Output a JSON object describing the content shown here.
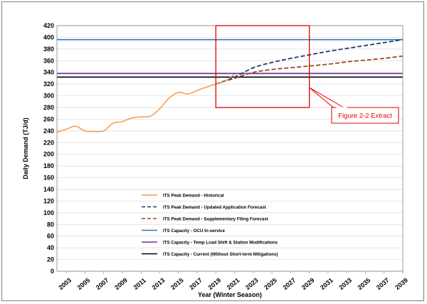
{
  "chart_data": {
    "type": "line",
    "xlabel": "Year (Winter Season)",
    "ylabel": "Daily Demand (TJ/d)",
    "xlim": [
      2002,
      2039
    ],
    "ylim": [
      0,
      420
    ],
    "y_ticks": [
      0,
      20,
      40,
      60,
      80,
      100,
      120,
      140,
      160,
      180,
      200,
      220,
      240,
      260,
      280,
      300,
      320,
      340,
      360,
      380,
      400,
      420
    ],
    "x_ticks": [
      2003,
      2005,
      2007,
      2009,
      2011,
      2013,
      2015,
      2017,
      2019,
      2021,
      2023,
      2025,
      2027,
      2029,
      2031,
      2033,
      2035,
      2037,
      2039
    ],
    "grid": "horizontal",
    "legend_position": "bottom-left inside",
    "series": [
      {
        "name": "ITS Peak Demand - Historical",
        "style": "solid",
        "color": "#f39c4d",
        "x": [
          2002,
          2003,
          2004,
          2005,
          2006,
          2007,
          2008,
          2009,
          2010,
          2011,
          2012,
          2013,
          2014,
          2015,
          2016,
          2017,
          2018,
          2019,
          2020,
          2021
        ],
        "y": [
          238,
          243,
          248,
          240,
          239,
          240,
          253,
          256,
          262,
          264,
          265,
          278,
          296,
          306,
          303,
          309,
          315,
          320,
          325,
          337
        ]
      },
      {
        "name": "ITS Peak Demand - Updated Application Forecast",
        "style": "dashed",
        "color": "#1f3e6e",
        "x": [
          2019,
          2021,
          2023,
          2025,
          2027,
          2029,
          2031,
          2033,
          2035,
          2037,
          2039
        ],
        "y": [
          320,
          332,
          348,
          357,
          364,
          370,
          376,
          381,
          386,
          391,
          396
        ]
      },
      {
        "name": "ITS Peak Demand - Supplementary Filing Forecast",
        "style": "dashed",
        "color": "#9b4a1e",
        "x": [
          2019,
          2021,
          2023,
          2025,
          2027,
          2029,
          2031,
          2033,
          2035,
          2037,
          2039
        ],
        "y": [
          320,
          330,
          340,
          345,
          348,
          351,
          354,
          358,
          361,
          364,
          368
        ]
      },
      {
        "name": "ITS Capacity - OCU In-service",
        "style": "solid",
        "color": "#2e75b6",
        "x": [
          2002,
          2039
        ],
        "y": [
          396,
          396
        ]
      },
      {
        "name": "ITS Capacity - Temp Load Shift & Station Modifications",
        "style": "solid",
        "color": "#7030a0",
        "x": [
          2002,
          2039
        ],
        "y": [
          338,
          338
        ]
      },
      {
        "name": "ITS Capacity - Current (Without Short-term Mitigations)",
        "style": "solid",
        "color": "#000000",
        "x": [
          2002,
          2039
        ],
        "y": [
          332,
          332
        ]
      }
    ],
    "annotations": [
      {
        "type": "highlight-box",
        "color": "#e00000",
        "x_range": [
          2019,
          2029
        ],
        "y_range": [
          280,
          420
        ]
      },
      {
        "type": "callout",
        "text": "Figure 2-2 Extract",
        "color": "#e00000",
        "points_to": "highlight-box"
      }
    ]
  }
}
